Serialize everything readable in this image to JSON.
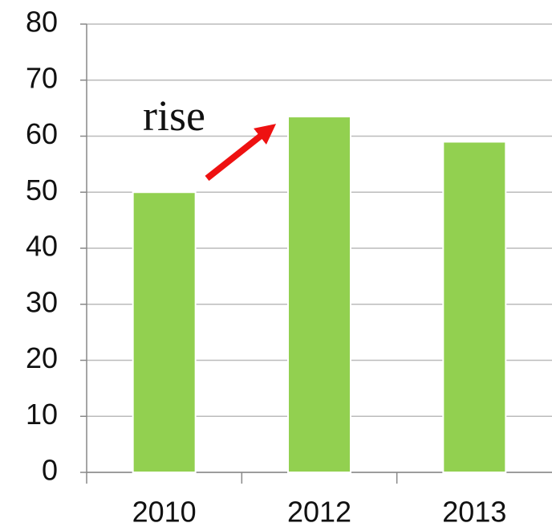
{
  "chart_data": {
    "type": "bar",
    "categories": [
      "2010",
      "2012",
      "2013"
    ],
    "values": [
      50,
      63.5,
      59
    ],
    "color": "#92d050",
    "ylim": [
      0,
      80
    ],
    "yticks": [
      0,
      10,
      20,
      30,
      40,
      50,
      60,
      70,
      80
    ],
    "grid": true,
    "annotation": "rise"
  }
}
